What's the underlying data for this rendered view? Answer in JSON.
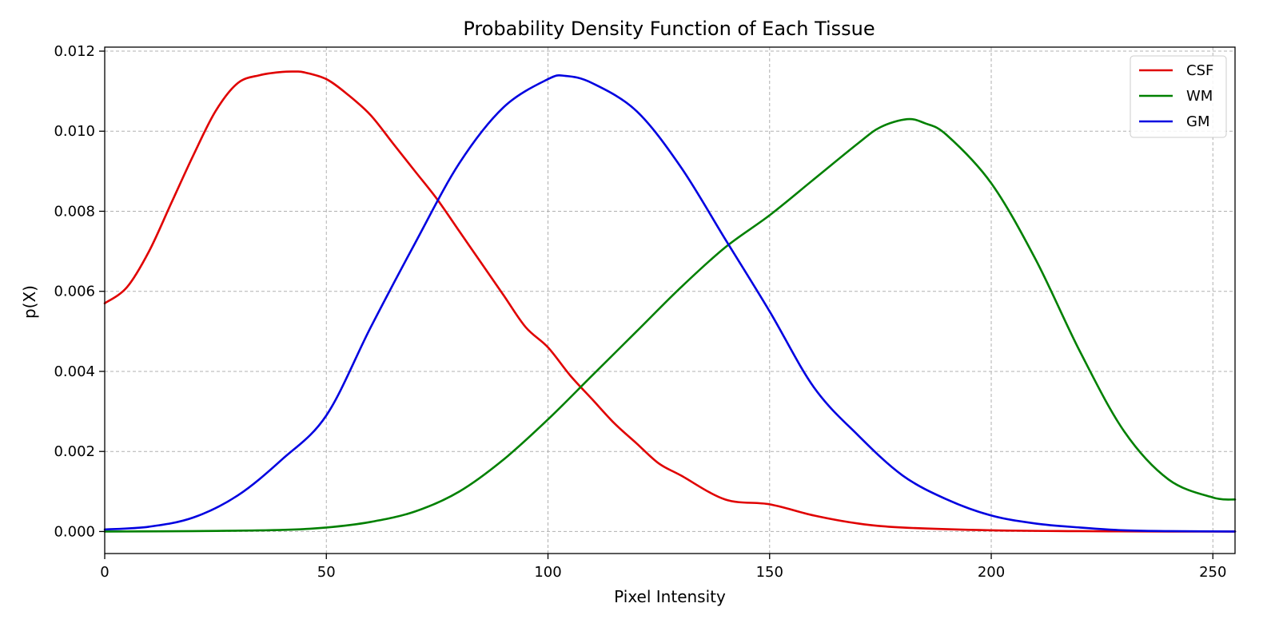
{
  "chart_data": {
    "type": "line",
    "title": "Probability Density Function of Each Tissue",
    "xlabel": "Pixel Intensity",
    "ylabel": "p(X)",
    "xlim": [
      0,
      255
    ],
    "ylim": [
      -0.00055,
      0.0121
    ],
    "x_ticks": [
      0,
      50,
      100,
      150,
      200,
      250
    ],
    "x_tick_labels": [
      "0",
      "50",
      "100",
      "150",
      "200",
      "250"
    ],
    "y_ticks": [
      0.0,
      0.002,
      0.004,
      0.006,
      0.008,
      0.01,
      0.012
    ],
    "y_tick_labels": [
      "0.000",
      "0.002",
      "0.004",
      "0.006",
      "0.008",
      "0.010",
      "0.012"
    ],
    "grid": true,
    "legend_position": "top-right",
    "series": [
      {
        "name": "CSF",
        "color": "#e00000",
        "x": [
          0,
          5,
          10,
          15,
          20,
          25,
          30,
          35,
          40,
          43,
          45,
          50,
          55,
          60,
          65,
          70,
          75,
          80,
          85,
          90,
          95,
          100,
          105,
          110,
          115,
          120,
          125,
          130,
          140,
          150,
          160,
          170,
          180,
          200,
          220,
          240,
          255
        ],
        "y": [
          0.0057,
          0.0061,
          0.007,
          0.0082,
          0.0094,
          0.0105,
          0.0112,
          0.0114,
          0.01148,
          0.01149,
          0.01147,
          0.0113,
          0.0109,
          0.0104,
          0.0097,
          0.009,
          0.0083,
          0.0075,
          0.0067,
          0.0059,
          0.0051,
          0.0046,
          0.0039,
          0.0033,
          0.0027,
          0.0022,
          0.0017,
          0.0014,
          0.0008,
          0.00068,
          0.0004,
          0.0002,
          0.0001,
          3e-05,
          1e-05,
          0.0,
          0.0
        ]
      },
      {
        "name": "WM",
        "color": "#008000",
        "x": [
          0,
          20,
          40,
          50,
          60,
          70,
          80,
          90,
          100,
          110,
          120,
          130,
          140,
          150,
          160,
          170,
          175,
          181,
          185,
          190,
          200,
          210,
          220,
          230,
          240,
          250,
          255
        ],
        "y": [
          0.0,
          1e-05,
          4e-05,
          0.0001,
          0.00024,
          0.0005,
          0.001,
          0.0018,
          0.0028,
          0.0039,
          0.005,
          0.0061,
          0.0071,
          0.0079,
          0.0088,
          0.0097,
          0.0101,
          0.0103,
          0.0102,
          0.0099,
          0.0087,
          0.0068,
          0.0045,
          0.0025,
          0.0013,
          0.00085,
          0.0008
        ]
      },
      {
        "name": "GM",
        "color": "#0000e0",
        "x": [
          0,
          10,
          20,
          30,
          40,
          50,
          60,
          70,
          80,
          90,
          100,
          104,
          110,
          120,
          130,
          140,
          150,
          160,
          170,
          180,
          190,
          200,
          210,
          220,
          230,
          240,
          255
        ],
        "y": [
          5e-05,
          0.00012,
          0.00035,
          0.0009,
          0.0018,
          0.0029,
          0.0051,
          0.0072,
          0.0092,
          0.0106,
          0.0113,
          0.01138,
          0.0112,
          0.0105,
          0.0091,
          0.0073,
          0.0055,
          0.0036,
          0.0024,
          0.0014,
          0.0008,
          0.0004,
          0.0002,
          0.0001,
          3e-05,
          1e-05,
          0.0
        ]
      }
    ]
  }
}
